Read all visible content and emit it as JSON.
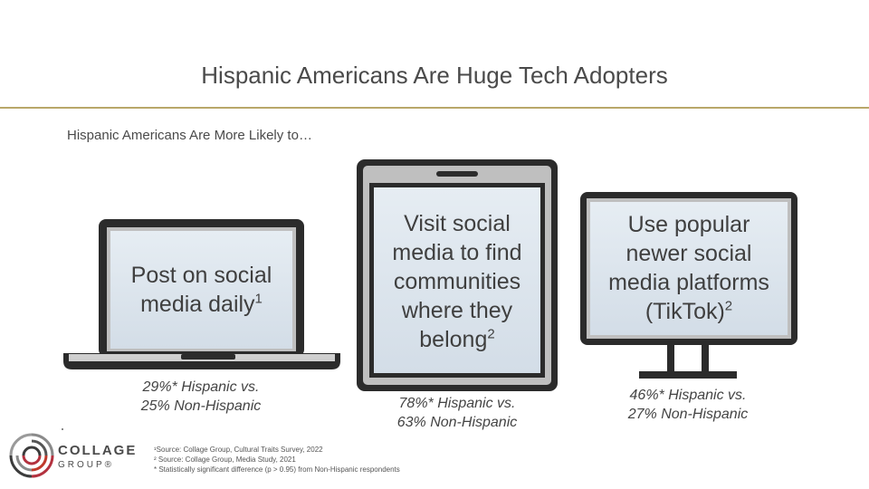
{
  "title": "Hispanic Americans Are Huge Tech Adopters",
  "subtitle": "Hispanic Americans Are More Likely to…",
  "devices": [
    {
      "device": "laptop",
      "lines": [
        "Post on social",
        "media daily"
      ],
      "footnote_mark": "1",
      "stat_line1": "29%* Hispanic vs.",
      "stat_line2": "25% Non-Hispanic"
    },
    {
      "device": "tablet",
      "lines": [
        "Visit social",
        "media to find",
        "communities",
        "where they",
        "belong"
      ],
      "footnote_mark": "2",
      "stat_line1": "78%* Hispanic vs.",
      "stat_line2": "63% Non-Hispanic"
    },
    {
      "device": "monitor",
      "lines": [
        "Use popular",
        "newer social",
        "media platforms",
        "(TikTok)"
      ],
      "footnote_mark": "2",
      "stat_line1": "46%* Hispanic vs.",
      "stat_line2": "27% Non-Hispanic"
    }
  ],
  "footnotes": [
    "¹Source: Collage Group, Cultural Traits Survey, 2022",
    "² Source: Collage Group, Media Study, 2021",
    "* Statistically significant difference (p > 0.95) from Non-Hispanic respondents"
  ],
  "logo": {
    "word1": "COLLAGE",
    "word2": "GROUP®"
  },
  "colors": {
    "accent_rule": "#b9a76a",
    "device_frame": "#2b2b2b",
    "screen_fill": "#dde6ee"
  }
}
